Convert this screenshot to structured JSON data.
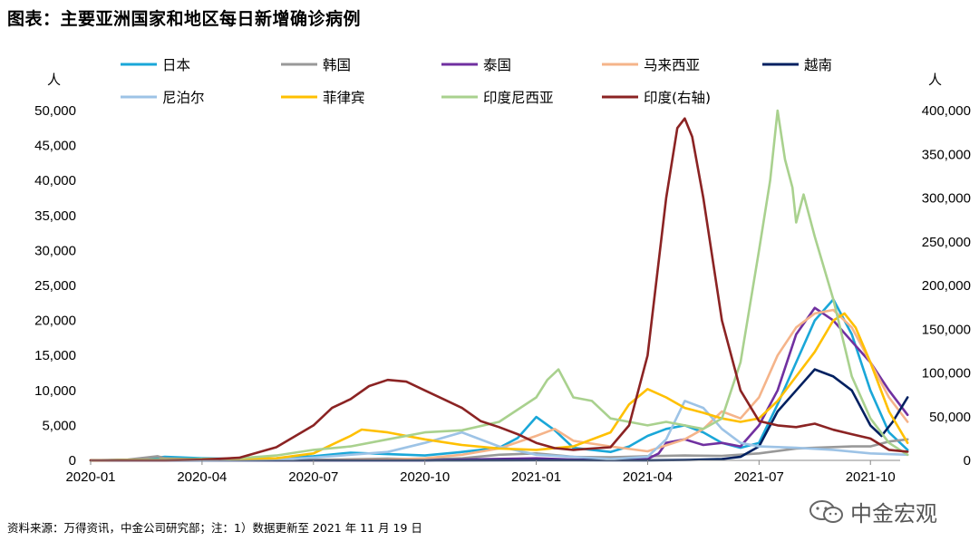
{
  "header": {
    "title": "图表：主要亚洲国家和地区每日新增确诊病例"
  },
  "footer": {
    "source": "资料来源：万得资讯，中金公司研究部；注：1）数据更新至 2021 年 11 月 19 日"
  },
  "watermark": {
    "text": "中金宏观",
    "icon": "wechat-icon"
  },
  "chart_data": {
    "type": "line",
    "title": "图表：主要亚洲国家和地区每日新增确诊病例",
    "xlabel": "",
    "ylabel_left": "人",
    "ylabel_right": "人",
    "x_range": [
      0,
      21.8
    ],
    "x_tick_labels": [
      "2020-01",
      "2020-04",
      "2020-07",
      "2020-10",
      "2021-01",
      "2021-04",
      "2021-07",
      "2021-10"
    ],
    "x_tick_positions": [
      0,
      3,
      6,
      9,
      12,
      15,
      18,
      21
    ],
    "ylim_left": [
      0,
      50000
    ],
    "ylim_right": [
      0,
      400000
    ],
    "y_ticks_left": [
      "0",
      "5,000",
      "10,000",
      "15,000",
      "20,000",
      "25,000",
      "30,000",
      "35,000",
      "40,000",
      "45,000",
      "50,000"
    ],
    "y_ticks_right": [
      "0",
      "50,000",
      "100,000",
      "150,000",
      "200,000",
      "250,000",
      "300,000",
      "350,000",
      "400,000"
    ],
    "series": [
      {
        "name": "日本",
        "color": "#1aa7d8",
        "axis": "left",
        "points": [
          [
            0,
            0
          ],
          [
            1,
            0
          ],
          [
            2,
            500
          ],
          [
            3,
            300
          ],
          [
            4,
            200
          ],
          [
            5,
            300
          ],
          [
            6,
            600
          ],
          [
            7,
            1100
          ],
          [
            8,
            900
          ],
          [
            9,
            700
          ],
          [
            10,
            1200
          ],
          [
            11,
            1800
          ],
          [
            11.5,
            3200
          ],
          [
            12,
            6200
          ],
          [
            12.5,
            4300
          ],
          [
            13,
            1800
          ],
          [
            14,
            1200
          ],
          [
            14.5,
            2000
          ],
          [
            15,
            3500
          ],
          [
            15.5,
            4500
          ],
          [
            16,
            5000
          ],
          [
            16.5,
            4000
          ],
          [
            17,
            2500
          ],
          [
            17.5,
            1800
          ],
          [
            18,
            2500
          ],
          [
            18.5,
            8000
          ],
          [
            19,
            14000
          ],
          [
            19.5,
            20000
          ],
          [
            20,
            23000
          ],
          [
            20.5,
            18000
          ],
          [
            21,
            10000
          ],
          [
            21.5,
            4000
          ],
          [
            22,
            1500
          ]
        ]
      },
      {
        "name": "韩国",
        "color": "#999999",
        "axis": "left",
        "points": [
          [
            0,
            0
          ],
          [
            1,
            100
          ],
          [
            1.8,
            600
          ],
          [
            2,
            300
          ],
          [
            3,
            100
          ],
          [
            5,
            50
          ],
          [
            6,
            50
          ],
          [
            8,
            250
          ],
          [
            9,
            150
          ],
          [
            10,
            300
          ],
          [
            11,
            800
          ],
          [
            12,
            1000
          ],
          [
            13,
            500
          ],
          [
            14,
            450
          ],
          [
            15,
            600
          ],
          [
            16,
            700
          ],
          [
            17,
            650
          ],
          [
            18,
            1000
          ],
          [
            19,
            1700
          ],
          [
            20,
            1900
          ],
          [
            20.5,
            2000
          ],
          [
            21,
            2000
          ],
          [
            21.5,
            2700
          ],
          [
            22,
            3000
          ]
        ]
      },
      {
        "name": "泰国",
        "color": "#7030a0",
        "axis": "left",
        "points": [
          [
            0,
            0
          ],
          [
            3,
            30
          ],
          [
            6,
            10
          ],
          [
            9,
            10
          ],
          [
            12,
            300
          ],
          [
            13,
            100
          ],
          [
            14,
            50
          ],
          [
            15,
            200
          ],
          [
            15.3,
            1000
          ],
          [
            15.5,
            2500
          ],
          [
            16,
            3000
          ],
          [
            16.5,
            2200
          ],
          [
            17,
            2500
          ],
          [
            17.5,
            2000
          ],
          [
            18,
            5000
          ],
          [
            18.5,
            10000
          ],
          [
            19,
            18000
          ],
          [
            19.5,
            21800
          ],
          [
            20,
            20000
          ],
          [
            20.5,
            17000
          ],
          [
            21,
            14000
          ],
          [
            21.5,
            10000
          ],
          [
            22,
            6500
          ]
        ]
      },
      {
        "name": "马来西亚",
        "color": "#f5b48a",
        "axis": "left",
        "points": [
          [
            0,
            0
          ],
          [
            3,
            100
          ],
          [
            6,
            10
          ],
          [
            8,
            100
          ],
          [
            9,
            300
          ],
          [
            10,
            800
          ],
          [
            11,
            1700
          ],
          [
            12,
            3500
          ],
          [
            12.5,
            4500
          ],
          [
            13,
            2800
          ],
          [
            14,
            2000
          ],
          [
            15,
            1300
          ],
          [
            16,
            3000
          ],
          [
            16.5,
            4500
          ],
          [
            17,
            7000
          ],
          [
            17.5,
            6000
          ],
          [
            18,
            9000
          ],
          [
            18.5,
            15000
          ],
          [
            19,
            19000
          ],
          [
            19.5,
            21000
          ],
          [
            20,
            21500
          ],
          [
            20.5,
            19000
          ],
          [
            21,
            14000
          ],
          [
            21.5,
            9000
          ],
          [
            22,
            5500
          ]
        ]
      },
      {
        "name": "越南",
        "color": "#002060",
        "axis": "left",
        "points": [
          [
            0,
            0
          ],
          [
            3,
            5
          ],
          [
            6,
            5
          ],
          [
            9,
            5
          ],
          [
            12,
            20
          ],
          [
            15,
            10
          ],
          [
            16,
            50
          ],
          [
            17,
            200
          ],
          [
            17.5,
            500
          ],
          [
            18,
            2000
          ],
          [
            18.5,
            7000
          ],
          [
            19,
            10000
          ],
          [
            19.5,
            13000
          ],
          [
            20,
            12000
          ],
          [
            20.5,
            10000
          ],
          [
            21,
            5000
          ],
          [
            21.3,
            3500
          ],
          [
            21.6,
            5500
          ],
          [
            22,
            9000
          ]
        ]
      },
      {
        "name": "尼泊尔",
        "color": "#9dc3e6",
        "axis": "left",
        "points": [
          [
            0,
            0
          ],
          [
            3,
            20
          ],
          [
            5,
            100
          ],
          [
            6,
            400
          ],
          [
            7,
            800
          ],
          [
            8,
            1200
          ],
          [
            9,
            2500
          ],
          [
            10,
            4000
          ],
          [
            11,
            2000
          ],
          [
            12,
            800
          ],
          [
            13,
            500
          ],
          [
            14,
            200
          ],
          [
            15,
            500
          ],
          [
            15.5,
            3000
          ],
          [
            16,
            8500
          ],
          [
            16.5,
            7500
          ],
          [
            17,
            4500
          ],
          [
            17.5,
            2500
          ],
          [
            18,
            2000
          ],
          [
            19,
            1800
          ],
          [
            20,
            1500
          ],
          [
            21,
            1000
          ],
          [
            22,
            800
          ]
        ]
      },
      {
        "name": "菲律宾",
        "color": "#ffc000",
        "axis": "left",
        "points": [
          [
            0,
            0
          ],
          [
            3,
            200
          ],
          [
            4,
            250
          ],
          [
            5,
            300
          ],
          [
            6,
            1000
          ],
          [
            7,
            3500
          ],
          [
            7.3,
            4400
          ],
          [
            8,
            4000
          ],
          [
            9,
            3000
          ],
          [
            10,
            2200
          ],
          [
            11,
            1700
          ],
          [
            12,
            1500
          ],
          [
            13,
            2000
          ],
          [
            14,
            4000
          ],
          [
            14.5,
            8000
          ],
          [
            15,
            10200
          ],
          [
            15.5,
            9000
          ],
          [
            16,
            7500
          ],
          [
            16.5,
            6800
          ],
          [
            17,
            6000
          ],
          [
            17.5,
            5500
          ],
          [
            18,
            6000
          ],
          [
            18.5,
            8500
          ],
          [
            19,
            12000
          ],
          [
            19.5,
            15500
          ],
          [
            20,
            20000
          ],
          [
            20.3,
            21000
          ],
          [
            20.6,
            19000
          ],
          [
            21,
            14000
          ],
          [
            21.5,
            7000
          ],
          [
            22,
            2500
          ]
        ]
      },
      {
        "name": "印度尼西亚",
        "color": "#a9d18e",
        "axis": "left",
        "points": [
          [
            0,
            0
          ],
          [
            3,
            150
          ],
          [
            4,
            300
          ],
          [
            5,
            700
          ],
          [
            6,
            1500
          ],
          [
            7,
            2000
          ],
          [
            8,
            3000
          ],
          [
            9,
            4000
          ],
          [
            10,
            4300
          ],
          [
            11,
            5500
          ],
          [
            12,
            9000
          ],
          [
            12.3,
            11500
          ],
          [
            12.6,
            13000
          ],
          [
            13,
            9000
          ],
          [
            13.5,
            8500
          ],
          [
            14,
            6000
          ],
          [
            14.5,
            5500
          ],
          [
            15,
            5000
          ],
          [
            15.5,
            5500
          ],
          [
            16,
            5000
          ],
          [
            16.5,
            4500
          ],
          [
            17,
            6000
          ],
          [
            17.5,
            14000
          ],
          [
            18,
            30000
          ],
          [
            18.3,
            40000
          ],
          [
            18.5,
            50000
          ],
          [
            18.7,
            43000
          ],
          [
            18.9,
            39000
          ],
          [
            19,
            34000
          ],
          [
            19.2,
            38000
          ],
          [
            19.5,
            32000
          ],
          [
            20,
            23000
          ],
          [
            20.5,
            12000
          ],
          [
            21,
            6000
          ],
          [
            21.5,
            2500
          ],
          [
            22,
            800
          ]
        ]
      },
      {
        "name": "印度(右轴)",
        "color": "#8b2323",
        "axis": "right",
        "points": [
          [
            0,
            0
          ],
          [
            2,
            0
          ],
          [
            3,
            800
          ],
          [
            4,
            3000
          ],
          [
            5,
            15000
          ],
          [
            6,
            40000
          ],
          [
            6.5,
            60000
          ],
          [
            7,
            70000
          ],
          [
            7.5,
            85000
          ],
          [
            8,
            92000
          ],
          [
            8.5,
            90000
          ],
          [
            9,
            80000
          ],
          [
            9.5,
            70000
          ],
          [
            10,
            60000
          ],
          [
            10.5,
            45000
          ],
          [
            11,
            38000
          ],
          [
            11.5,
            30000
          ],
          [
            12,
            20000
          ],
          [
            12.5,
            14000
          ],
          [
            13,
            12000
          ],
          [
            14,
            15000
          ],
          [
            14.5,
            40000
          ],
          [
            15,
            120000
          ],
          [
            15.5,
            300000
          ],
          [
            15.8,
            380000
          ],
          [
            16,
            391000
          ],
          [
            16.2,
            370000
          ],
          [
            16.5,
            300000
          ],
          [
            17,
            160000
          ],
          [
            17.5,
            80000
          ],
          [
            18,
            45000
          ],
          [
            18.5,
            40000
          ],
          [
            19,
            38000
          ],
          [
            19.5,
            42000
          ],
          [
            20,
            35000
          ],
          [
            20.5,
            30000
          ],
          [
            21,
            25000
          ],
          [
            21.5,
            12000
          ],
          [
            22,
            10000
          ]
        ]
      }
    ]
  }
}
